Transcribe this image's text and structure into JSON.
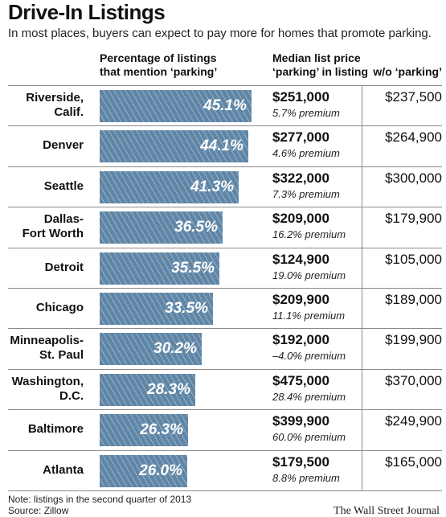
{
  "title": "Drive-In Listings",
  "subtitle": "In most places, buyers can expect to pay more for homes that promote parking.",
  "headers": {
    "pct_line1": "Percentage of listings",
    "pct_line2": "that mention ‘parking’",
    "median_line1": "Median list price",
    "median_line2": "‘parking’ in listing",
    "without": "w/o ‘parking’"
  },
  "chart_data": {
    "type": "bar",
    "orientation": "horizontal",
    "xlim": [
      0,
      50
    ],
    "categories": [
      [
        "Riverside,",
        "Calif."
      ],
      [
        "Denver"
      ],
      [
        "Seattle"
      ],
      [
        "Dallas-",
        "Fort Worth"
      ],
      [
        "Detroit"
      ],
      [
        "Chicago"
      ],
      [
        "Minneapolis-",
        "St. Paul"
      ],
      [
        "Washington,",
        "D.C."
      ],
      [
        "Baltimore"
      ],
      [
        "Atlanta"
      ]
    ],
    "values": [
      45.1,
      44.1,
      41.3,
      36.5,
      35.5,
      33.5,
      30.2,
      28.3,
      26.3,
      26.0
    ],
    "value_labels": [
      "45.1%",
      "44.1%",
      "41.3%",
      "36.5%",
      "35.5%",
      "33.5%",
      "30.2%",
      "28.3%",
      "26.3%",
      "26.0%"
    ],
    "median_with_parking": [
      "$251,000",
      "$277,000",
      "$322,000",
      "$209,000",
      "$124,900",
      "$209,900",
      "$192,000",
      "$475,000",
      "$399,900",
      "$179,500"
    ],
    "premium": [
      "5.7% premium",
      "4.6% premium",
      "7.3% premium",
      "16.2% premium",
      "19.0% premium",
      "11.1% premium",
      "–4.0% premium",
      "28.4% premium",
      "60.0% premium",
      "8.8% premium"
    ],
    "median_without_parking": [
      "$237,500",
      "$264,900",
      "$300,000",
      "$179,900",
      "$105,000",
      "$189,000",
      "$199,900",
      "$370,000",
      "$249,900",
      "$165,000"
    ],
    "bar_color": "#5f86a6"
  },
  "footer": {
    "note": "Note: listings in the second quarter of 2013",
    "source": "Source: Zillow",
    "credit": "The Wall Street Journal"
  }
}
